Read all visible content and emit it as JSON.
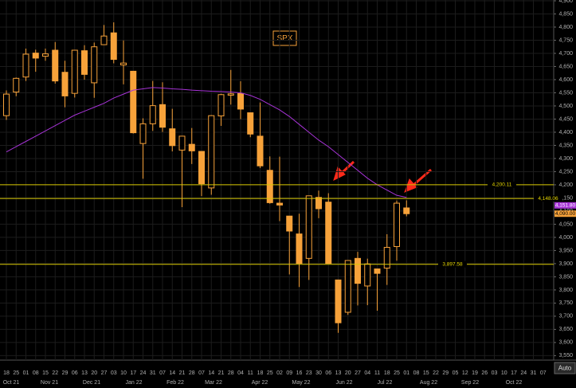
{
  "chart_data": {
    "type": "candlestick",
    "title": "SPX",
    "ylim": [
      3533,
      4903
    ],
    "yticks": [
      {
        "value": 3550,
        "label": "3,550"
      },
      {
        "value": 3600,
        "label": "3,600"
      },
      {
        "value": 3650,
        "label": "3,650"
      },
      {
        "value": 3700,
        "label": "3,700"
      },
      {
        "value": 3750,
        "label": "3,750"
      },
      {
        "value": 3800,
        "label": "3,800"
      },
      {
        "value": 3850,
        "label": "3,850"
      },
      {
        "value": 3900,
        "label": "3,900"
      },
      {
        "value": 3950,
        "label": "3,950"
      },
      {
        "value": 4000,
        "label": "4,000"
      },
      {
        "value": 4050,
        "label": "4,050"
      },
      {
        "value": 4100,
        "label": "4,100"
      },
      {
        "value": 4150,
        "label": "4,150"
      },
      {
        "value": 4200,
        "label": "4,200"
      },
      {
        "value": 4250,
        "label": "4,250"
      },
      {
        "value": 4300,
        "label": "4,300"
      },
      {
        "value": 4350,
        "label": "4,350"
      },
      {
        "value": 4400,
        "label": "4,400"
      },
      {
        "value": 4450,
        "label": "4,450"
      },
      {
        "value": 4500,
        "label": "4,500"
      },
      {
        "value": 4550,
        "label": "4,550"
      },
      {
        "value": 4600,
        "label": "4,600"
      },
      {
        "value": 4650,
        "label": "4,650"
      },
      {
        "value": 4700,
        "label": "4,700"
      },
      {
        "value": 4750,
        "label": "4,750"
      },
      {
        "value": 4800,
        "label": "4,800"
      },
      {
        "value": 4850,
        "label": "4,850"
      },
      {
        "value": 4900,
        "label": "4,900"
      }
    ],
    "day_labels": [
      "18",
      "25",
      "01",
      "08",
      "15",
      "22",
      "29",
      "06",
      "13",
      "20",
      "27",
      "03",
      "10",
      "17",
      "24",
      "31",
      "07",
      "14",
      "21",
      "28",
      "07",
      "14",
      "21",
      "28",
      "04",
      "11",
      "18",
      "25",
      "02",
      "09",
      "16",
      "23",
      "30",
      "06",
      "13",
      "20",
      "27",
      "04",
      "11",
      "18",
      "25",
      "01",
      "08",
      "15",
      "22",
      "29",
      "05",
      "12",
      "19",
      "26",
      "03",
      "10",
      "17",
      "24",
      "31",
      "07"
    ],
    "months": [
      "Oct 21",
      "Nov 21",
      "Dec 21",
      "Jan 22",
      "Feb 22",
      "Mar 22",
      "Apr 22",
      "May 22",
      "Jun 22",
      "Jul 22",
      "Aug 22",
      "Sep 22",
      "Oct 22"
    ],
    "color": "#f7a23a",
    "open": [
      4463,
      4553,
      4610,
      4701,
      4689,
      4712,
      4628,
      4548,
      4710,
      4588,
      4733,
      4778,
      4656,
      4632,
      4357,
      4432,
      4505,
      4413,
      4332,
      4354,
      4327,
      4188,
      4462,
      4541,
      4547,
      4474,
      4385,
      4255,
      4130,
      4081,
      4013,
      3920,
      4152,
      4134,
      3838,
      3715,
      3920,
      3815,
      3880,
      3883,
      3965,
      4112
    ],
    "high": [
      4559,
      4608,
      4718,
      4714,
      4718,
      4743,
      4672,
      4713,
      4731,
      4741,
      4808,
      4818,
      4749,
      4632,
      4453,
      4595,
      4590,
      4489,
      4385,
      4416,
      4327,
      4465,
      4546,
      4637,
      4594,
      4471,
      4513,
      4308,
      4307,
      4081,
      4090,
      4158,
      4178,
      4168,
      3838,
      3913,
      3945,
      3919,
      3880,
      4012,
      4140,
      4141
    ],
    "low": [
      4447,
      4537,
      4595,
      4630,
      4672,
      4585,
      4495,
      4532,
      4600,
      4531,
      4733,
      4662,
      4582,
      4395,
      4223,
      4405,
      4401,
      4327,
      4115,
      4279,
      4157,
      4162,
      4424,
      4505,
      4450,
      4381,
      4264,
      4128,
      4062,
      3859,
      3811,
      3838,
      4073,
      3900,
      3637,
      3705,
      3741,
      3742,
      3721,
      3819,
      3911,
      4080
    ],
    "close": [
      4545,
      4605,
      4697,
      4682,
      4698,
      4595,
      4538,
      4712,
      4620,
      4725,
      4766,
      4677,
      4663,
      4398,
      4432,
      4501,
      4419,
      4349,
      4385,
      4329,
      4204,
      4463,
      4543,
      4546,
      4488,
      4393,
      4272,
      4132,
      4123,
      4024,
      3901,
      4158,
      4109,
      3901,
      3675,
      3912,
      3825,
      3899,
      3863,
      3962,
      4130,
      4090
    ],
    "ma": {
      "color": "#a633d6",
      "values": [
        4325,
        4345,
        4365,
        4385,
        4405,
        4425,
        4445,
        4465,
        4480,
        4495,
        4510,
        4530,
        4545,
        4560,
        4565,
        4570,
        4568,
        4565,
        4563,
        4560,
        4558,
        4556,
        4555,
        4553,
        4550,
        4540,
        4525,
        4505,
        4485,
        4460,
        4430,
        4400,
        4370,
        4345,
        4315,
        4285,
        4255,
        4225,
        4200,
        4180,
        4160,
        4152
      ],
      "value_label": "4,151.80"
    },
    "last_price": {
      "value": 4090,
      "label": "4,090.00"
    },
    "levels": [
      {
        "value": 4200.11,
        "label": "4,200.11"
      },
      {
        "value": 4148.06,
        "label": "4,148.06"
      },
      {
        "value": 3897.58,
        "label": "3,897.58"
      }
    ],
    "button": "Auto"
  }
}
